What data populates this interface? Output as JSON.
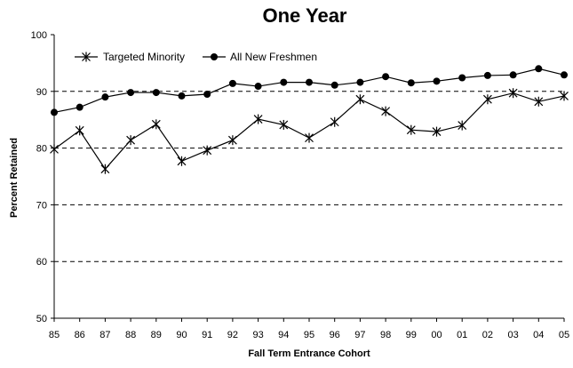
{
  "chart_data": {
    "type": "line",
    "title": "One Year",
    "xlabel": "Fall Term Entrance Cohort",
    "ylabel": "Percent Retained",
    "ylim": [
      50,
      100
    ],
    "yticks": [
      50,
      60,
      70,
      80,
      90,
      100
    ],
    "gridlines": "dashed at 60, 70, 80, 90",
    "legend_position": "top-left",
    "categories": [
      "85",
      "86",
      "87",
      "88",
      "89",
      "90",
      "91",
      "92",
      "93",
      "94",
      "95",
      "96",
      "97",
      "98",
      "99",
      "00",
      "01",
      "02",
      "03",
      "04",
      "05"
    ],
    "series": [
      {
        "name": "Targeted Minority",
        "marker": "star",
        "color": "#000000",
        "values": [
          79.8,
          83.1,
          76.3,
          81.4,
          84.2,
          77.7,
          79.6,
          81.4,
          85.1,
          84.1,
          81.8,
          84.6,
          88.6,
          86.5,
          83.2,
          82.9,
          84.0,
          88.6,
          89.7,
          88.2,
          89.2
        ]
      },
      {
        "name": "All New Freshmen",
        "marker": "circle",
        "color": "#000000",
        "values": [
          86.3,
          87.2,
          89.0,
          89.8,
          89.8,
          89.2,
          89.5,
          91.4,
          90.9,
          91.6,
          91.6,
          91.1,
          91.6,
          92.6,
          91.5,
          91.8,
          92.4,
          92.8,
          92.9,
          94.0,
          92.9
        ]
      }
    ]
  }
}
